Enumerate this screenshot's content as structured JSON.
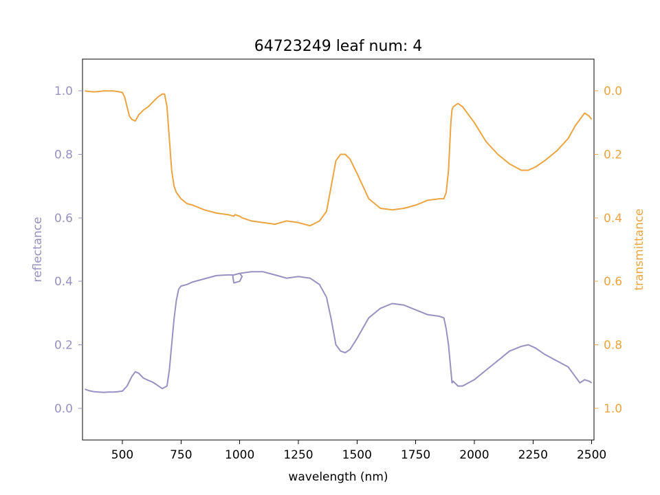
{
  "chart_data": {
    "type": "line",
    "title": "64723249 leaf num: 4",
    "xlabel": "wavelength (nm)",
    "ylabel_left": "reflectance",
    "ylabel_right": "transmittance",
    "xlim": [
      330,
      2510
    ],
    "ylim_left": [
      -0.1,
      1.1
    ],
    "ylim_right": [
      1.1,
      -0.1
    ],
    "x_ticks": [
      500,
      750,
      1000,
      1250,
      1500,
      1750,
      2000,
      2250,
      2500
    ],
    "left_ticks": [
      0.0,
      0.2,
      0.4,
      0.6,
      0.8,
      1.0
    ],
    "right_ticks": [
      0.0,
      0.2,
      0.4,
      0.6,
      0.8,
      1.0
    ],
    "grid": false,
    "colors": {
      "reflectance": "#9791c2",
      "transmittance": "#eba43f",
      "axis": "#000000"
    },
    "series": [
      {
        "name": "reflectance",
        "axis": "left",
        "x": [
          340,
          360,
          380,
          400,
          420,
          440,
          460,
          480,
          500,
          520,
          540,
          555,
          570,
          590,
          610,
          630,
          650,
          670,
          690,
          700,
          710,
          720,
          730,
          740,
          750,
          775,
          800,
          850,
          900,
          950,
          970,
          975,
          1000,
          1010,
          1000,
          975,
          1000,
          1050,
          1100,
          1150,
          1200,
          1250,
          1300,
          1340,
          1370,
          1390,
          1410,
          1430,
          1450,
          1470,
          1500,
          1550,
          1600,
          1650,
          1700,
          1750,
          1800,
          1850,
          1870,
          1880,
          1890,
          1900,
          1905,
          1910,
          1930,
          1950,
          2000,
          2050,
          2100,
          2150,
          2200,
          2230,
          2260,
          2300,
          2350,
          2400,
          2430,
          2450,
          2470,
          2490,
          2500
        ],
        "y": [
          0.06,
          0.055,
          0.052,
          0.051,
          0.05,
          0.051,
          0.051,
          0.052,
          0.054,
          0.07,
          0.1,
          0.115,
          0.11,
          0.095,
          0.088,
          0.082,
          0.072,
          0.062,
          0.07,
          0.12,
          0.2,
          0.28,
          0.34,
          0.375,
          0.385,
          0.39,
          0.398,
          0.408,
          0.418,
          0.42,
          0.42,
          0.395,
          0.4,
          0.415,
          0.425,
          0.42,
          0.425,
          0.43,
          0.43,
          0.42,
          0.41,
          0.415,
          0.41,
          0.39,
          0.35,
          0.28,
          0.2,
          0.18,
          0.175,
          0.185,
          0.22,
          0.285,
          0.315,
          0.33,
          0.325,
          0.31,
          0.295,
          0.29,
          0.285,
          0.25,
          0.2,
          0.12,
          0.08,
          0.085,
          0.07,
          0.07,
          0.09,
          0.12,
          0.15,
          0.18,
          0.195,
          0.2,
          0.19,
          0.17,
          0.15,
          0.13,
          0.1,
          0.08,
          0.09,
          0.085,
          0.08
        ]
      },
      {
        "name": "transmittance",
        "axis": "right",
        "x": [
          340,
          360,
          380,
          400,
          420,
          440,
          460,
          480,
          500,
          510,
          520,
          530,
          540,
          555,
          570,
          590,
          610,
          630,
          650,
          670,
          680,
          690,
          700,
          710,
          720,
          730,
          740,
          750,
          775,
          800,
          850,
          900,
          950,
          975,
          980,
          1000,
          1010,
          1050,
          1100,
          1150,
          1200,
          1250,
          1300,
          1340,
          1370,
          1390,
          1410,
          1430,
          1450,
          1470,
          1500,
          1550,
          1600,
          1650,
          1700,
          1750,
          1800,
          1850,
          1870,
          1880,
          1890,
          1900,
          1905,
          1910,
          1930,
          1950,
          2000,
          2050,
          2100,
          2150,
          2200,
          2230,
          2260,
          2300,
          2350,
          2400,
          2430,
          2450,
          2470,
          2490,
          2500
        ],
        "y": [
          0.0,
          0.002,
          0.003,
          0.002,
          0.0,
          0.0,
          0.0,
          0.002,
          0.005,
          0.02,
          0.05,
          0.08,
          0.09,
          0.095,
          0.075,
          0.06,
          0.05,
          0.035,
          0.02,
          0.01,
          0.01,
          0.05,
          0.15,
          0.25,
          0.3,
          0.32,
          0.33,
          0.34,
          0.355,
          0.36,
          0.375,
          0.385,
          0.39,
          0.395,
          0.39,
          0.395,
          0.4,
          0.41,
          0.415,
          0.42,
          0.41,
          0.415,
          0.425,
          0.41,
          0.38,
          0.3,
          0.22,
          0.2,
          0.2,
          0.215,
          0.26,
          0.34,
          0.37,
          0.375,
          0.37,
          0.36,
          0.345,
          0.34,
          0.34,
          0.32,
          0.25,
          0.1,
          0.06,
          0.05,
          0.04,
          0.05,
          0.1,
          0.16,
          0.2,
          0.23,
          0.25,
          0.25,
          0.24,
          0.22,
          0.19,
          0.15,
          0.11,
          0.09,
          0.07,
          0.08,
          0.09
        ]
      }
    ]
  }
}
